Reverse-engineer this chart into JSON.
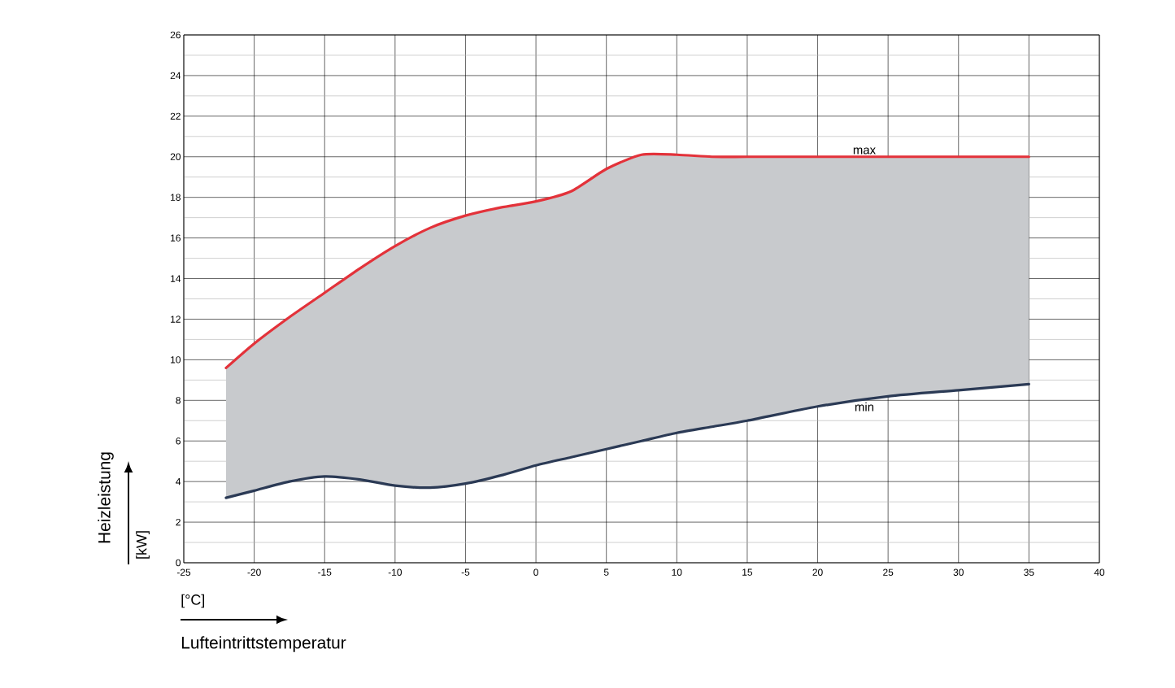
{
  "chart_data": {
    "type": "line",
    "xlabel": "Lufteintrittstemperatur",
    "ylabel": "Heizleistung",
    "annotations": [
      "[°C]",
      "[kW]"
    ],
    "x": [
      -22,
      -20,
      -17.5,
      -15,
      -12.5,
      -10,
      -7.5,
      -5,
      -2.5,
      0,
      2.5,
      5,
      7.5,
      10,
      12.5,
      15,
      20,
      25,
      30,
      35
    ],
    "series": [
      {
        "name": "max",
        "color": "#e3323a",
        "values": [
          9.6,
          10.8,
          12.1,
          13.3,
          14.5,
          15.6,
          16.5,
          17.1,
          17.5,
          17.8,
          18.3,
          19.4,
          20.1,
          20.1,
          20.0,
          20.0,
          20.0,
          20.0,
          20.0,
          20.0
        ],
        "lower": [
          3.2,
          3.55,
          4.0,
          4.25,
          4.1,
          3.8,
          3.7,
          3.9,
          4.3,
          4.8,
          5.2,
          5.6,
          6.0,
          6.4,
          6.7,
          7.0,
          7.7,
          8.2,
          8.5,
          8.8
        ],
        "upper": [
          9.6,
          10.8,
          12.1,
          13.3,
          14.5,
          15.6,
          16.5,
          17.1,
          17.5,
          17.8,
          18.3,
          19.4,
          20.1,
          20.1,
          20.0,
          20.0,
          20.0,
          20.0,
          20.0,
          20.0
        ]
      },
      {
        "name": "min",
        "color": "#2b3a55",
        "values": [
          3.2,
          3.55,
          4.0,
          4.25,
          4.1,
          3.8,
          3.7,
          3.9,
          4.3,
          4.8,
          5.2,
          5.6,
          6.0,
          6.4,
          6.7,
          7.0,
          7.7,
          8.2,
          8.5,
          8.8
        ]
      }
    ],
    "xlim": [
      -25,
      40
    ],
    "ylim": [
      0,
      26
    ],
    "xticks": [
      -25,
      -20,
      -15,
      -10,
      -5,
      0,
      5,
      10,
      15,
      20,
      25,
      30,
      35,
      40
    ],
    "yticks": [
      0,
      2,
      4,
      6,
      8,
      10,
      12,
      14,
      16,
      18,
      20,
      22,
      24,
      26
    ],
    "grid": true,
    "legend": false,
    "marker": "none",
    "line_style": "solid"
  }
}
